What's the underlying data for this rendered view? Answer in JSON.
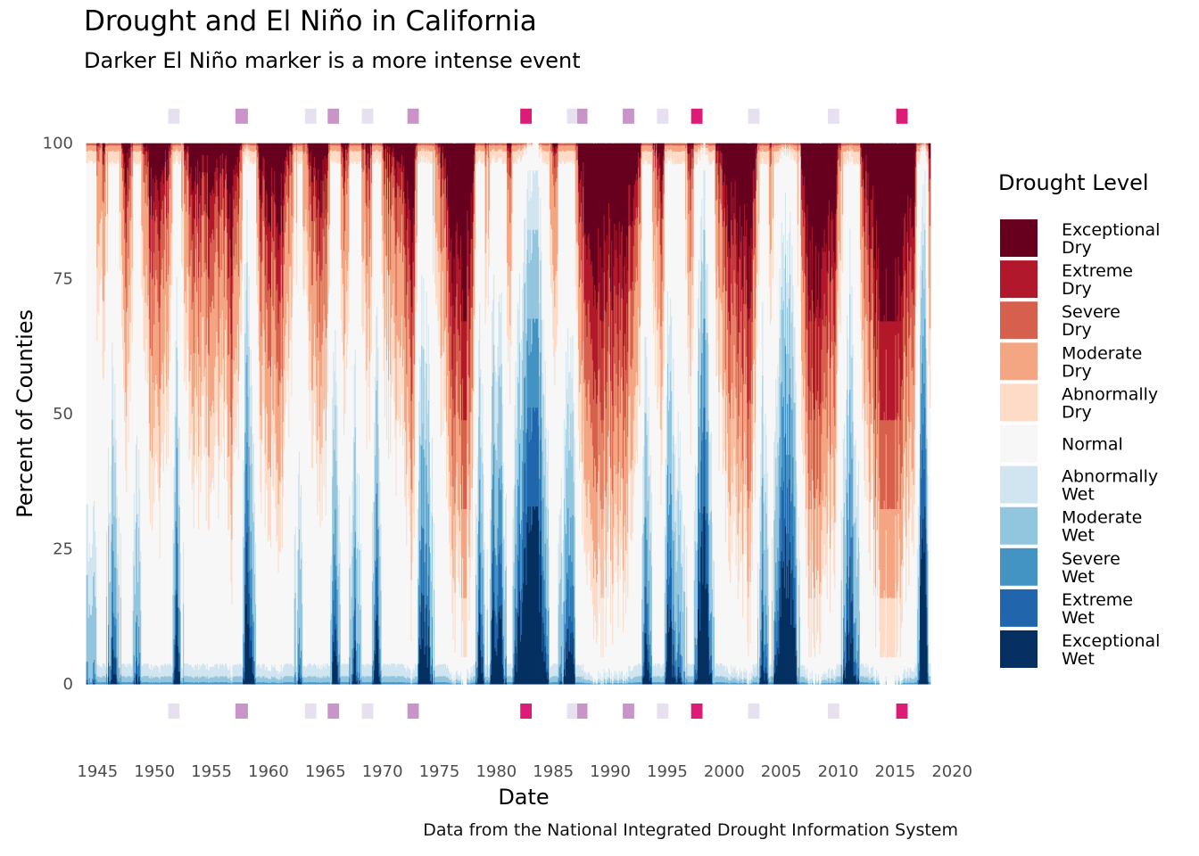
{
  "title": "Drought and El Niño in California",
  "subtitle": "Darker El Niño marker is a more intense event",
  "caption": "Data from the National Integrated Drought Information System",
  "chart_data": {
    "type": "area",
    "xlabel": "Date",
    "ylabel": "Percent of Counties",
    "xlim": [
      1943.8,
      2021
    ],
    "ylim": [
      -12,
      110
    ],
    "x_ticks": [
      1945,
      1950,
      1955,
      1960,
      1965,
      1970,
      1975,
      1980,
      1985,
      1990,
      1995,
      2000,
      2005,
      2010,
      2015,
      2020
    ],
    "y_ticks": [
      0,
      25,
      50,
      75,
      100
    ],
    "data_range": [
      1944.0,
      2018.0
    ],
    "legend": {
      "title": "Drought Level",
      "position": "right",
      "entries": [
        {
          "label": [
            "Exceptional",
            "Dry"
          ],
          "color": "#67001f"
        },
        {
          "label": [
            "Extreme",
            "Dry"
          ],
          "color": "#b2182b"
        },
        {
          "label": [
            "Severe",
            "Dry"
          ],
          "color": "#d6604d"
        },
        {
          "label": [
            "Moderate",
            "Dry"
          ],
          "color": "#f4a582"
        },
        {
          "label": [
            "Abnormally",
            "Dry"
          ],
          "color": "#fddbc7"
        },
        {
          "label": [
            "Normal"
          ],
          "color": "#f7f7f7"
        },
        {
          "label": [
            "Abnormally",
            "Wet"
          ],
          "color": "#d1e5f0"
        },
        {
          "label": [
            "Moderate",
            "Wet"
          ],
          "color": "#92c5de"
        },
        {
          "label": [
            "Severe",
            "Wet"
          ],
          "color": "#4393c3"
        },
        {
          "label": [
            "Extreme",
            "Wet"
          ],
          "color": "#2166ac"
        },
        {
          "label": [
            "Exceptional",
            "Wet"
          ],
          "color": "#053061"
        }
      ]
    },
    "drought_phases": [
      [
        1944.0,
        -0.2
      ],
      [
        1945.5,
        0.2
      ],
      [
        1946.3,
        -0.5
      ],
      [
        1947.5,
        0.5
      ],
      [
        1948.5,
        -0.3
      ],
      [
        1949.3,
        0.4
      ],
      [
        1950.0,
        0.7
      ],
      [
        1951.2,
        0.4
      ],
      [
        1951.9,
        -0.6
      ],
      [
        1952.7,
        0.3
      ],
      [
        1953.5,
        0.6
      ],
      [
        1954.3,
        0.5
      ],
      [
        1955.2,
        0.6
      ],
      [
        1956.0,
        0.4
      ],
      [
        1956.7,
        0.75
      ],
      [
        1957.6,
        0.3
      ],
      [
        1958.0,
        -0.85
      ],
      [
        1958.8,
        -0.2
      ],
      [
        1959.2,
        0.5
      ],
      [
        1960.0,
        0.6
      ],
      [
        1961.0,
        0.7
      ],
      [
        1962.0,
        0.3
      ],
      [
        1962.7,
        -0.3
      ],
      [
        1963.5,
        0.4
      ],
      [
        1964.3,
        0.6
      ],
      [
        1965.0,
        0.5
      ],
      [
        1965.8,
        -0.6
      ],
      [
        1966.6,
        0.5
      ],
      [
        1967.5,
        -0.5
      ],
      [
        1968.0,
        -0.1
      ],
      [
        1968.8,
        0.5
      ],
      [
        1969.4,
        -0.7
      ],
      [
        1970.2,
        0.3
      ],
      [
        1971.0,
        0.45
      ],
      [
        1972.0,
        0.55
      ],
      [
        1972.6,
        0.9
      ],
      [
        1973.3,
        -0.7
      ],
      [
        1974.0,
        -0.5
      ],
      [
        1974.8,
        0.2
      ],
      [
        1975.5,
        0.5
      ],
      [
        1976.3,
        0.85
      ],
      [
        1977.2,
        0.95
      ],
      [
        1977.9,
        0.6
      ],
      [
        1978.5,
        -0.75
      ],
      [
        1979.1,
        0.2
      ],
      [
        1979.7,
        -0.7
      ],
      [
        1980.4,
        -0.6
      ],
      [
        1981.1,
        0.3
      ],
      [
        1981.8,
        -0.6
      ],
      [
        1982.5,
        -0.9
      ],
      [
        1983.5,
        -0.95
      ],
      [
        1984.3,
        -0.5
      ],
      [
        1985.0,
        0.25
      ],
      [
        1985.8,
        -0.2
      ],
      [
        1986.5,
        -0.7
      ],
      [
        1987.3,
        0.5
      ],
      [
        1988.0,
        0.75
      ],
      [
        1989.0,
        0.85
      ],
      [
        1990.0,
        0.8
      ],
      [
        1991.0,
        0.85
      ],
      [
        1992.0,
        0.6
      ],
      [
        1992.6,
        0.3
      ],
      [
        1993.0,
        -0.6
      ],
      [
        1993.8,
        0.1
      ],
      [
        1994.5,
        0.6
      ],
      [
        1995.0,
        -0.75
      ],
      [
        1995.7,
        -0.3
      ],
      [
        1996.3,
        -0.2
      ],
      [
        1997.0,
        0.4
      ],
      [
        1997.7,
        -0.6
      ],
      [
        1998.2,
        -0.9
      ],
      [
        1998.8,
        -0.4
      ],
      [
        1999.3,
        0.3
      ],
      [
        2000.0,
        0.6
      ],
      [
        2000.8,
        0.7
      ],
      [
        2001.5,
        0.75
      ],
      [
        2002.2,
        0.85
      ],
      [
        2002.8,
        0.35
      ],
      [
        2003.3,
        -0.6
      ],
      [
        2004.0,
        0.15
      ],
      [
        2004.6,
        -0.45
      ],
      [
        2005.3,
        -0.9
      ],
      [
        2006.0,
        -0.7
      ],
      [
        2006.7,
        0.3
      ],
      [
        2007.4,
        0.9
      ],
      [
        2008.2,
        0.85
      ],
      [
        2008.9,
        0.75
      ],
      [
        2009.6,
        0.8
      ],
      [
        2010.4,
        -0.2
      ],
      [
        2011.0,
        -0.7
      ],
      [
        2011.6,
        -0.3
      ],
      [
        2012.2,
        0.4
      ],
      [
        2012.9,
        0.7
      ],
      [
        2013.6,
        0.95
      ],
      [
        2014.4,
        0.98
      ],
      [
        2015.2,
        0.98
      ],
      [
        2016.0,
        0.7
      ],
      [
        2016.6,
        0.85
      ],
      [
        2017.2,
        -0.7
      ],
      [
        2017.6,
        -0.95
      ],
      [
        2018.0,
        0.4
      ]
    ],
    "el_nino_events": [
      {
        "start": 1951.2,
        "end": 1952.2,
        "intensity": "weak"
      },
      {
        "start": 1957.1,
        "end": 1958.2,
        "intensity": "moderate"
      },
      {
        "start": 1963.2,
        "end": 1964.2,
        "intensity": "weak"
      },
      {
        "start": 1965.2,
        "end": 1966.2,
        "intensity": "moderate"
      },
      {
        "start": 1968.2,
        "end": 1969.2,
        "intensity": "weak"
      },
      {
        "start": 1972.2,
        "end": 1973.2,
        "intensity": "moderate"
      },
      {
        "start": 1982.1,
        "end": 1983.1,
        "intensity": "strong"
      },
      {
        "start": 1986.2,
        "end": 1987.1,
        "intensity": "weak"
      },
      {
        "start": 1987.1,
        "end": 1988.0,
        "intensity": "moderate"
      },
      {
        "start": 1991.1,
        "end": 1992.1,
        "intensity": "moderate"
      },
      {
        "start": 1994.1,
        "end": 1995.1,
        "intensity": "weak"
      },
      {
        "start": 1997.1,
        "end": 1998.1,
        "intensity": "strong"
      },
      {
        "start": 2002.1,
        "end": 2003.1,
        "intensity": "weak"
      },
      {
        "start": 2009.1,
        "end": 2010.1,
        "intensity": "weak"
      },
      {
        "start": 2015.1,
        "end": 2016.1,
        "intensity": "strong"
      }
    ],
    "el_nino_colors": {
      "weak": "#e7e1ef",
      "moderate": "#c994c7",
      "strong": "#dd1c77"
    },
    "el_nino_marker_y": {
      "top": 105,
      "bottom": -5
    }
  }
}
